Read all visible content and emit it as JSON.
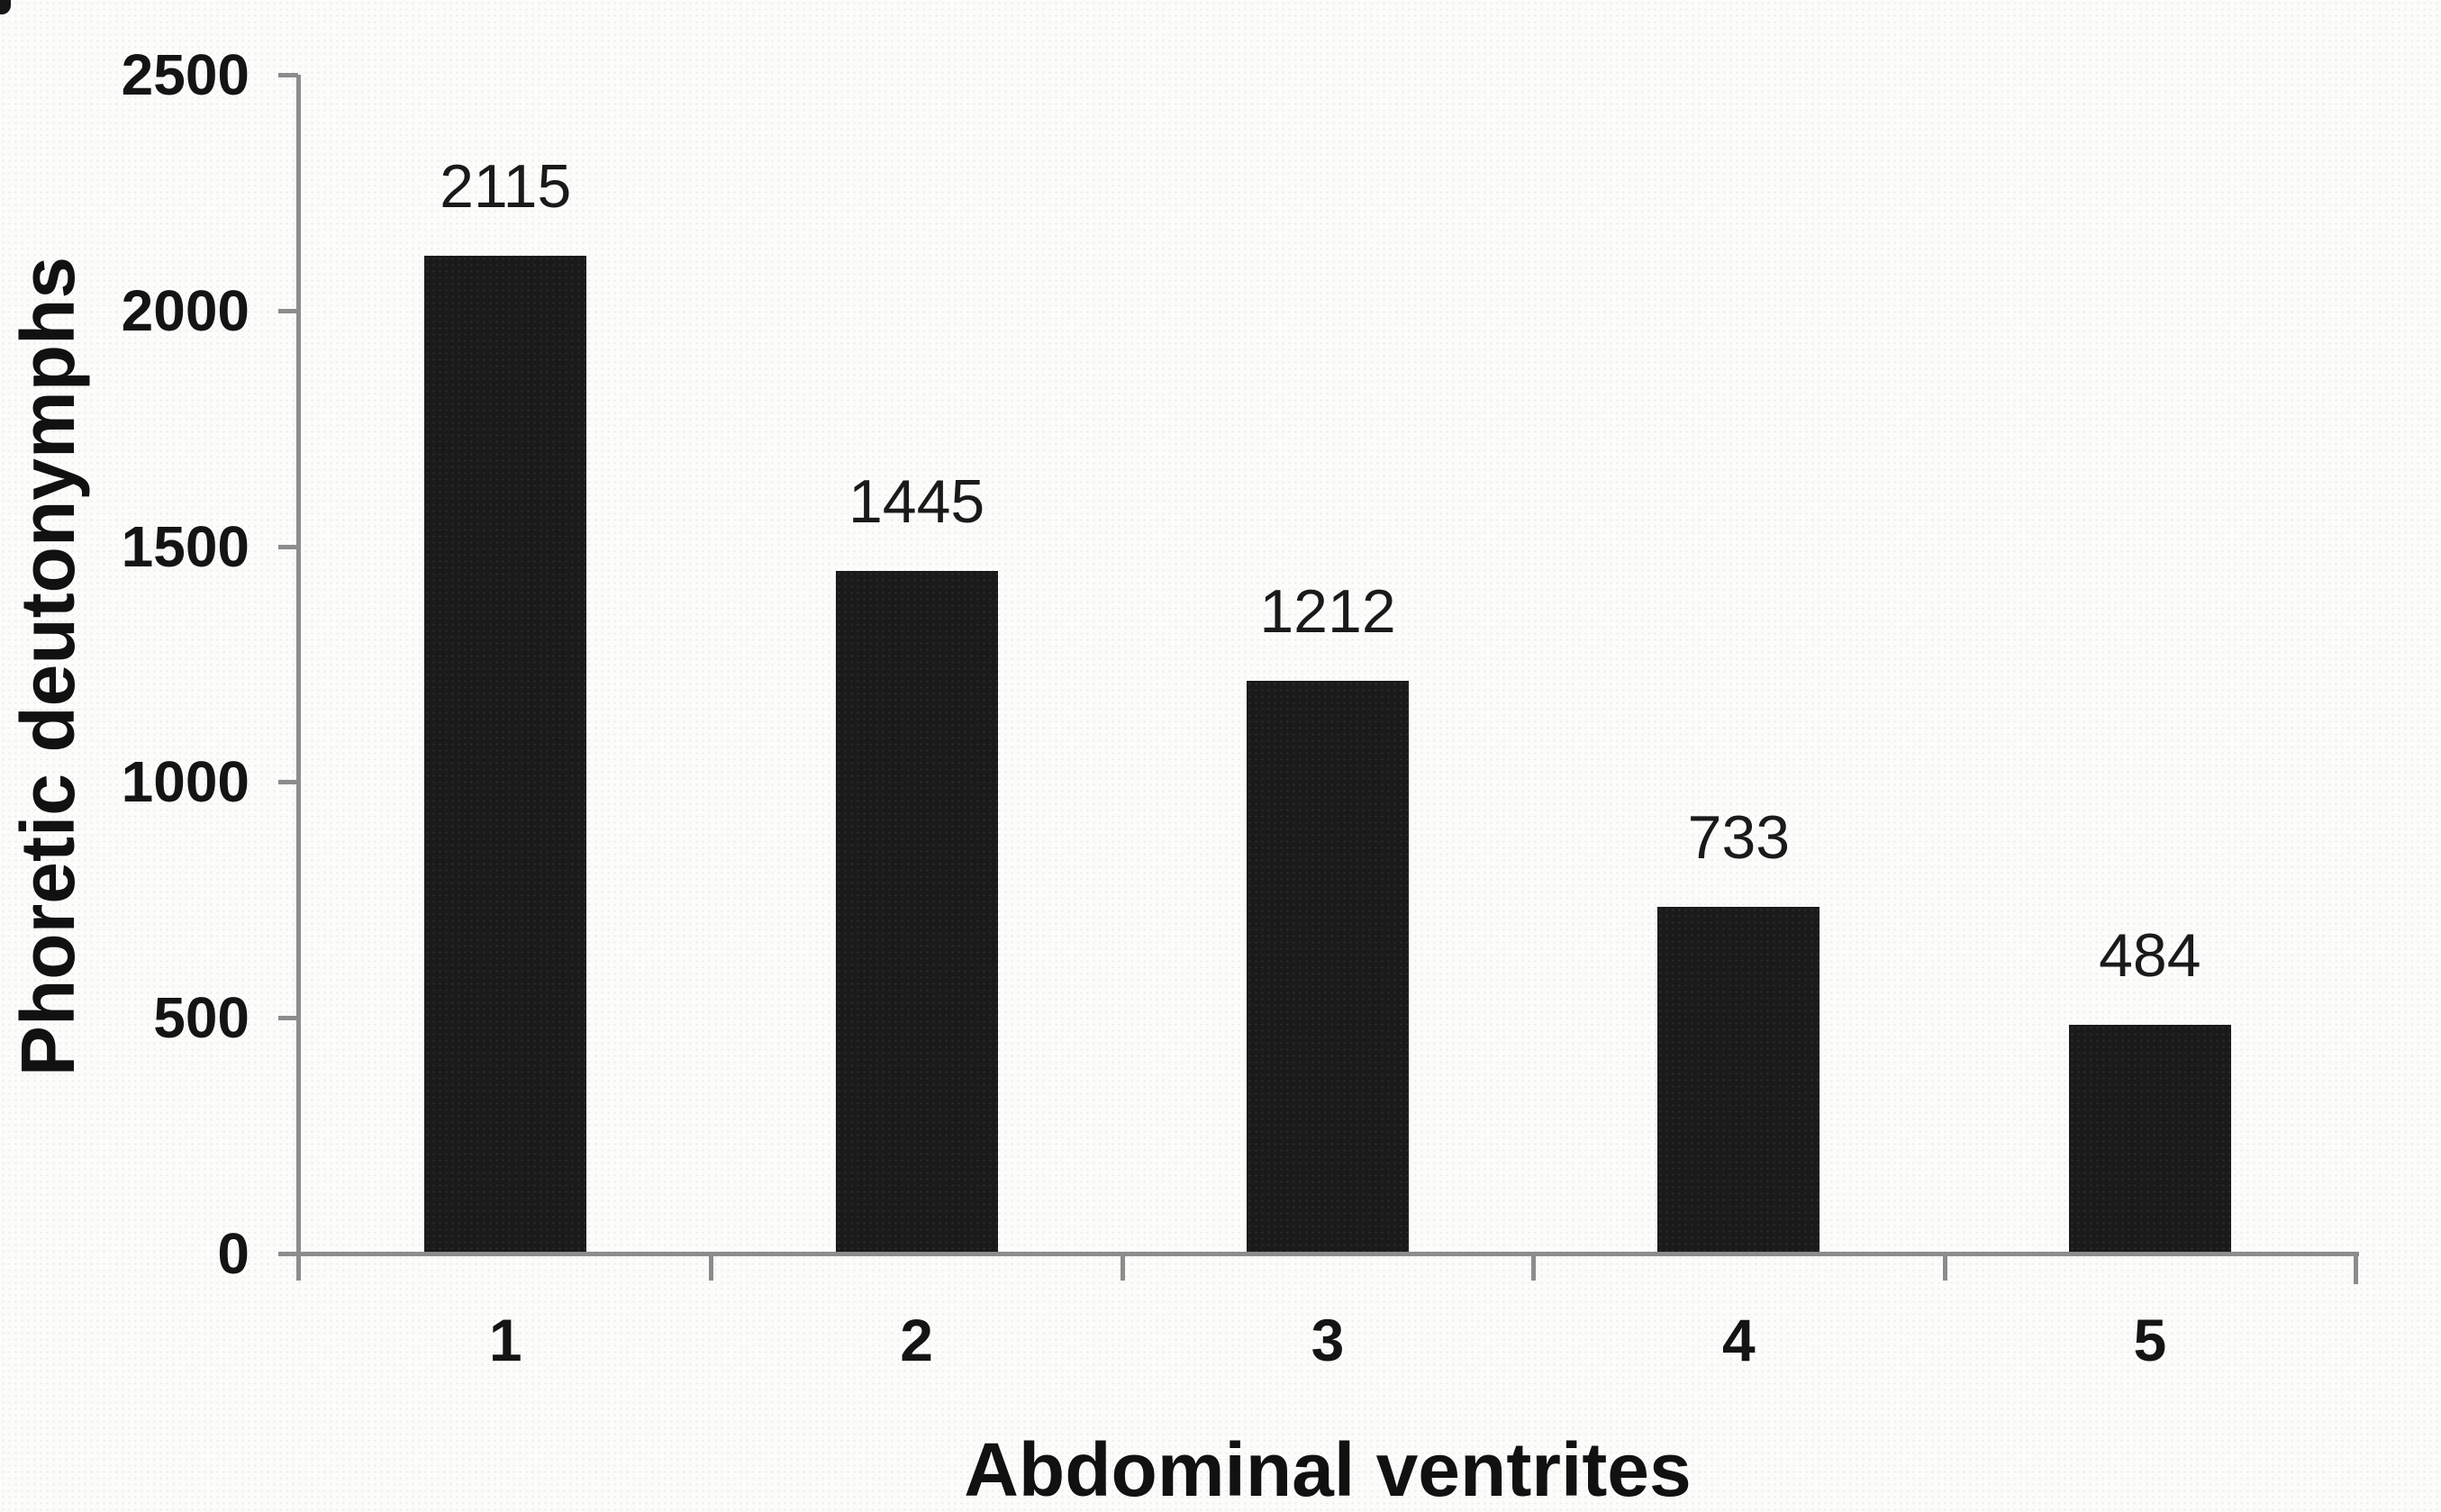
{
  "figure": {
    "background": "#fcfcfb",
    "text_color": "#141414"
  },
  "chart_data": {
    "type": "bar",
    "categories": [
      "1",
      "2",
      "3",
      "4",
      "5"
    ],
    "values": [
      2115,
      1445,
      1212,
      733,
      484
    ],
    "title": "",
    "xlabel": "Abdominal ventrites",
    "ylabel": "Phoretic deutonymphs",
    "ylim": [
      0,
      2500
    ],
    "yticks": [
      0,
      500,
      1000,
      1500,
      2000,
      2500
    ],
    "grid": false,
    "legend": "none",
    "data_labels_shown": true,
    "bar_color": "#1a1a1a",
    "axis_color": "#8c8c8c",
    "label_color": "#141414"
  }
}
